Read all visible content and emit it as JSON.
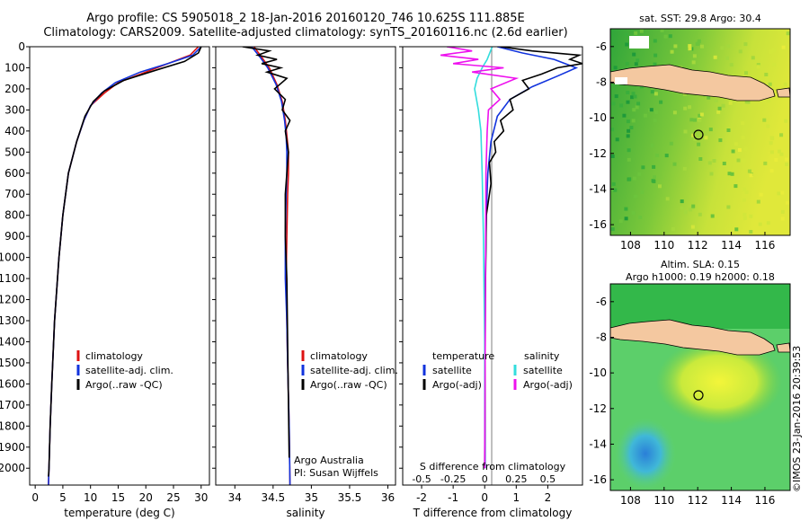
{
  "header": {
    "title_line1": "Argo profile: CS 5905018_2 18-Jan-2016 20160120_746 10.625S 111.885E",
    "title_line2": "Climatology: CARS2009. Satellite-adjusted climatology: synTS_20160116.nc (2.6d earlier)"
  },
  "colors": {
    "climatology": "#dd1111",
    "satellite_adj": "#1133dd",
    "argo": "#000000",
    "salinity_satellite": "#33dddd",
    "salinity_argo": "#ee11ee",
    "land": "#f4c8a0"
  },
  "credit": "©IMOS 23-Jan-2016 20:39:53",
  "chart_data": [
    {
      "type": "line",
      "panel": "temperature",
      "xlabel": "temperature (deg C)",
      "ylabel": "",
      "xlim": [
        -1,
        31.5
      ],
      "ylim": [
        2080,
        0
      ],
      "xticks": [
        0,
        5,
        10,
        15,
        20,
        25,
        30
      ],
      "yticks": [
        0,
        100,
        200,
        300,
        400,
        500,
        600,
        700,
        800,
        900,
        1000,
        1100,
        1200,
        1300,
        1400,
        1500,
        1600,
        1700,
        1800,
        1900,
        2000
      ],
      "legend": [
        "climatology",
        "satellite-adj. clim.",
        "Argo(..raw -QC)"
      ],
      "series": [
        {
          "name": "climatology",
          "x": [
            29.5,
            28,
            24,
            20,
            15,
            12.5,
            10,
            8.8,
            7.5,
            6,
            5,
            4.3,
            3.5,
            3,
            2.7,
            2.5,
            2.4
          ],
          "y": [
            0,
            40,
            80,
            120,
            170,
            220,
            280,
            350,
            450,
            600,
            800,
            1000,
            1300,
            1600,
            1800,
            2000,
            2080
          ]
        },
        {
          "name": "satellite-adj. clim.",
          "x": [
            30,
            28.5,
            24,
            19,
            14.5,
            12,
            10,
            8.8,
            7.5,
            6,
            5,
            4.3,
            3.5,
            3,
            2.7,
            2.5,
            2.4
          ],
          "y": [
            0,
            40,
            80,
            120,
            170,
            220,
            280,
            350,
            450,
            600,
            800,
            1000,
            1300,
            1600,
            1800,
            2000,
            2080
          ]
        },
        {
          "name": "Argo(..raw -QC)",
          "x": [
            30,
            29.5,
            27,
            22,
            16,
            12.5,
            10.5,
            9,
            7.5,
            6,
            5,
            4.3,
            3.5,
            3,
            2.7,
            2.5,
            2.4
          ],
          "y": [
            0,
            30,
            70,
            110,
            160,
            210,
            260,
            330,
            450,
            600,
            800,
            1000,
            1300,
            1600,
            1800,
            2000,
            2040
          ]
        }
      ]
    },
    {
      "type": "line",
      "panel": "salinity",
      "xlabel": "salinity",
      "xlim": [
        33.75,
        36.1
      ],
      "ylim": [
        2080,
        0
      ],
      "xticks": [
        34,
        34.5,
        35,
        35.5,
        36
      ],
      "legend": [
        "climatology",
        "satellite-adj. clim.",
        "Argo(..raw -QC)"
      ],
      "annotations": [
        "Argo Australia",
        "PI: Susan Wijffels"
      ],
      "series": [
        {
          "name": "climatology",
          "x": [
            34.25,
            34.35,
            34.45,
            34.55,
            34.62,
            34.66,
            34.68,
            34.7,
            34.7,
            34.69,
            34.68,
            34.67,
            34.68,
            34.69,
            34.71,
            34.72
          ],
          "y": [
            0,
            50,
            100,
            180,
            260,
            350,
            420,
            500,
            600,
            700,
            900,
            1100,
            1300,
            1500,
            1800,
            2080
          ]
        },
        {
          "name": "satellite-adj. clim.",
          "x": [
            34.22,
            34.33,
            34.43,
            34.54,
            34.61,
            34.65,
            34.67,
            34.68,
            34.68,
            34.67,
            34.66,
            34.66,
            34.68,
            34.69,
            34.71,
            34.72
          ],
          "y": [
            0,
            50,
            100,
            180,
            260,
            350,
            420,
            500,
            600,
            700,
            900,
            1100,
            1300,
            1500,
            1800,
            2080
          ]
        },
        {
          "name": "Argo(..raw -QC)",
          "x": [
            34.1,
            34.45,
            34.3,
            34.55,
            34.35,
            34.6,
            34.42,
            34.68,
            34.52,
            34.66,
            34.62,
            34.72,
            34.66,
            34.7,
            34.68,
            34.66,
            34.66,
            34.68,
            34.69,
            34.7,
            34.71
          ],
          "y": [
            0,
            20,
            40,
            60,
            80,
            100,
            120,
            150,
            200,
            250,
            300,
            350,
            400,
            500,
            600,
            700,
            900,
            1100,
            1400,
            1700,
            1950
          ]
        }
      ]
    },
    {
      "type": "line",
      "panel": "difference",
      "xlabel": "T difference from climatology",
      "top_axis_label": "S difference from climatology",
      "xlim": [
        -2.6,
        3.1
      ],
      "ylim": [
        2080,
        0
      ],
      "xticks": [
        -2,
        -1,
        0,
        1,
        2
      ],
      "top_ticks": [
        -0.5,
        -0.25,
        0,
        0.25,
        0.5
      ],
      "legend_titles": [
        "temperature",
        "salinity"
      ],
      "legend": [
        "satellite",
        "Argo(-adj)",
        "satellite",
        "Argo(-adj)"
      ],
      "series": [
        {
          "name": "temperature satellite",
          "x": [
            0.4,
            1.2,
            2.2,
            2.9,
            2.3,
            1.5,
            0.8,
            0.4,
            0.2,
            0.1,
            0.05,
            0.02,
            0.01,
            0.01
          ],
          "y": [
            0,
            30,
            60,
            100,
            140,
            190,
            250,
            330,
            450,
            600,
            800,
            1100,
            1500,
            2000
          ]
        },
        {
          "name": "temperature Argo(-adj)",
          "x": [
            0.5,
            1.5,
            3,
            2.7,
            3.1,
            2.3,
            1.8,
            1.2,
            1.4,
            0.8,
            0.9,
            0.5,
            0.6,
            0.3,
            0.35,
            0.15,
            0.2,
            0.05,
            0.02,
            0.0
          ],
          "y": [
            0,
            20,
            40,
            60,
            80,
            100,
            130,
            160,
            200,
            250,
            300,
            350,
            400,
            450,
            500,
            550,
            650,
            800,
            1200,
            2000
          ]
        },
        {
          "name": "salinity satellite",
          "x": [
            0.06,
            0.02,
            -0.02,
            -0.06,
            -0.08,
            -0.05,
            -0.03,
            -0.02,
            -0.01,
            0.0,
            0.0
          ],
          "y": [
            0,
            60,
            100,
            150,
            200,
            300,
            400,
            600,
            900,
            1400,
            2000
          ]
        },
        {
          "name": "salinity Argo(-adj)",
          "x": [
            -0.3,
            -0.1,
            -0.35,
            -0.05,
            -0.25,
            0.15,
            -0.1,
            0.25,
            0.05,
            0.12,
            0.03,
            0.02,
            0.01,
            0.0
          ],
          "y": [
            0,
            20,
            40,
            60,
            80,
            100,
            120,
            150,
            200,
            250,
            300,
            400,
            600,
            2000
          ]
        }
      ]
    },
    {
      "type": "heatmap",
      "panel": "sst_map",
      "title": "sat. SST: 29.8 Argo: 30.4",
      "xticks": [
        108,
        110,
        112,
        114,
        116
      ],
      "yticks": [
        -6,
        -8,
        -10,
        -12,
        -14,
        -16
      ],
      "xlim": [
        106.8,
        117.5
      ],
      "ylim": [
        -16.6,
        -5
      ],
      "argo_location": [
        111.885,
        -10.625
      ]
    },
    {
      "type": "heatmap",
      "panel": "sla_map",
      "title_line1": "Altim. SLA: 0.15",
      "title_line2": "Argo h1000: 0.19 h2000: 0.18",
      "xticks": [
        108,
        110,
        112,
        114,
        116
      ],
      "yticks": [
        -6,
        -8,
        -10,
        -12,
        -14,
        -16
      ],
      "xlim": [
        106.8,
        117.5
      ],
      "ylim": [
        -16.6,
        -5
      ],
      "argo_location": [
        111.885,
        -10.625
      ]
    }
  ]
}
